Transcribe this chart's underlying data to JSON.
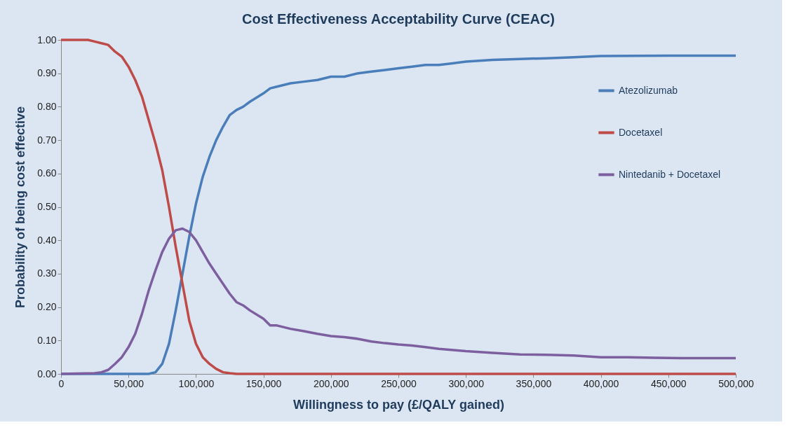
{
  "chart_data": {
    "type": "line",
    "title": "Cost Effectiveness Acceptability Curve (CEAC)",
    "xlabel": "Willingness to pay (£/QALY gained)",
    "ylabel": "Probability of being cost effective",
    "xlim": [
      0,
      500000
    ],
    "ylim": [
      0,
      1
    ],
    "xticks": [
      0,
      {
        "value": 50000,
        "label": "50,000"
      },
      {
        "value": 100000,
        "label": "100,000"
      },
      {
        "value": 150000,
        "label": "150,000"
      },
      {
        "value": 200000,
        "label": "200,000"
      },
      {
        "value": 250000,
        "label": "250,000"
      },
      {
        "value": 300000,
        "label": "300,000"
      },
      {
        "value": 350000,
        "label": "350,000"
      },
      {
        "value": 400000,
        "label": "400,000"
      },
      {
        "value": 450000,
        "label": "450,000"
      },
      {
        "value": 500000,
        "label": "500,000"
      }
    ],
    "yticks": [
      {
        "value": 0,
        "label": "0.00"
      },
      {
        "value": 0.1,
        "label": "0.10"
      },
      {
        "value": 0.2,
        "label": "0.20"
      },
      {
        "value": 0.3,
        "label": "0.30"
      },
      {
        "value": 0.4,
        "label": "0.40"
      },
      {
        "value": 0.5,
        "label": "0.50"
      },
      {
        "value": 0.6,
        "label": "0.60"
      },
      {
        "value": 0.7,
        "label": "0.70"
      },
      {
        "value": 0.8,
        "label": "0.80"
      },
      {
        "value": 0.9,
        "label": "0.90"
      },
      {
        "value": 1,
        "label": "1.00"
      }
    ],
    "grid": false,
    "legend": "top right",
    "marker": "none",
    "line_style": "solid",
    "series": [
      {
        "name": "Atezolizumab",
        "color": "#4a7ebb",
        "x": [
          0,
          65000,
          70000,
          75000,
          80000,
          85000,
          90000,
          95000,
          100000,
          105000,
          110000,
          115000,
          120000,
          125000,
          130000,
          135000,
          140000,
          150000,
          155000,
          160000,
          170000,
          180000,
          190000,
          200000,
          210000,
          220000,
          230000,
          240000,
          250000,
          260000,
          270000,
          280000,
          290000,
          300000,
          320000,
          340000,
          360000,
          380000,
          400000,
          450000,
          500000
        ],
        "values": [
          0,
          0,
          0.005,
          0.03,
          0.09,
          0.19,
          0.3,
          0.41,
          0.51,
          0.59,
          0.65,
          0.7,
          0.74,
          0.775,
          0.79,
          0.8,
          0.815,
          0.84,
          0.855,
          0.86,
          0.87,
          0.875,
          0.88,
          0.89,
          0.89,
          0.9,
          0.905,
          0.91,
          0.915,
          0.92,
          0.925,
          0.925,
          0.93,
          0.935,
          0.94,
          0.943,
          0.945,
          0.948,
          0.952,
          0.953,
          0.953
        ]
      },
      {
        "name": "Docetaxel",
        "color": "#be4b48",
        "x": [
          0,
          20000,
          25000,
          30000,
          35000,
          40000,
          45000,
          50000,
          55000,
          60000,
          65000,
          70000,
          75000,
          80000,
          85000,
          90000,
          95000,
          100000,
          105000,
          110000,
          115000,
          120000,
          125000,
          130000,
          500000
        ],
        "values": [
          1,
          1,
          0.995,
          0.99,
          0.985,
          0.965,
          0.95,
          0.92,
          0.88,
          0.83,
          0.76,
          0.69,
          0.61,
          0.5,
          0.38,
          0.27,
          0.16,
          0.09,
          0.05,
          0.03,
          0.015,
          0.005,
          0.002,
          0,
          0
        ]
      },
      {
        "name": "Nintedanib + Docetaxel",
        "color": "#7d5fa0",
        "x": [
          0,
          25000,
          30000,
          35000,
          40000,
          45000,
          50000,
          55000,
          60000,
          65000,
          70000,
          75000,
          80000,
          85000,
          90000,
          95000,
          100000,
          105000,
          110000,
          115000,
          120000,
          125000,
          130000,
          135000,
          140000,
          150000,
          155000,
          160000,
          170000,
          180000,
          190000,
          200000,
          210000,
          220000,
          230000,
          240000,
          250000,
          260000,
          270000,
          280000,
          300000,
          320000,
          340000,
          360000,
          380000,
          400000,
          420000,
          440000,
          460000,
          500000
        ],
        "values": [
          0,
          0.002,
          0.005,
          0.012,
          0.03,
          0.05,
          0.08,
          0.12,
          0.18,
          0.25,
          0.31,
          0.365,
          0.405,
          0.43,
          0.435,
          0.425,
          0.4,
          0.365,
          0.33,
          0.3,
          0.27,
          0.24,
          0.215,
          0.205,
          0.19,
          0.165,
          0.145,
          0.145,
          0.135,
          0.128,
          0.12,
          0.113,
          0.11,
          0.105,
          0.097,
          0.092,
          0.088,
          0.085,
          0.08,
          0.075,
          0.068,
          0.063,
          0.058,
          0.057,
          0.055,
          0.05,
          0.05,
          0.048,
          0.047,
          0.047
        ]
      }
    ]
  }
}
